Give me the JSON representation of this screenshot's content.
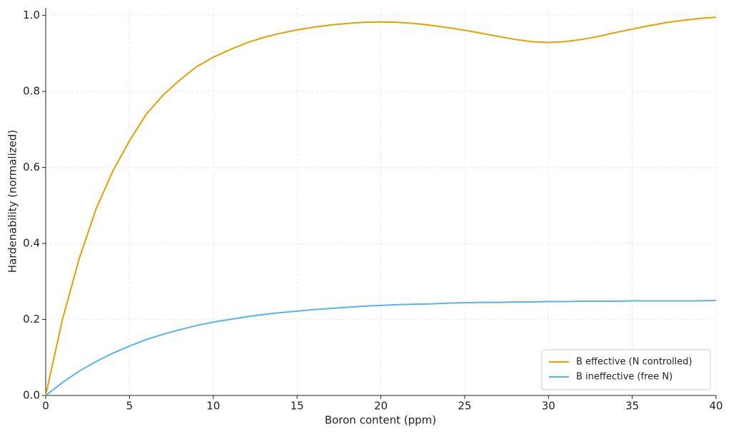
{
  "chart_data": {
    "type": "line",
    "x_label": "Boron content (ppm)",
    "y_label": "Hardenability (normalized)",
    "x": [
      0,
      1,
      2,
      3,
      4,
      5,
      6,
      7,
      8,
      9,
      10,
      11,
      12,
      13,
      14,
      15,
      16,
      17,
      18,
      19,
      20,
      21,
      22,
      23,
      24,
      25,
      26,
      27,
      28,
      29,
      30,
      31,
      32,
      33,
      34,
      35,
      36,
      37,
      38,
      39,
      40
    ],
    "series": [
      {
        "name": "B effective (N controlled)",
        "color": "#e69f00",
        "values": [
          0,
          0.2,
          0.36,
          0.49,
          0.59,
          0.67,
          0.74,
          0.79,
          0.83,
          0.865,
          0.89,
          0.91,
          0.928,
          0.942,
          0.953,
          0.962,
          0.969,
          0.975,
          0.979,
          0.982,
          0.983,
          0.982,
          0.979,
          0.974,
          0.968,
          0.961,
          0.953,
          0.945,
          0.937,
          0.931,
          0.929,
          0.931,
          0.937,
          0.945,
          0.955,
          0.964,
          0.973,
          0.981,
          0.987,
          0.992,
          0.995
        ]
      },
      {
        "name": "B ineffective (free N)",
        "color": "#56b4e9",
        "values": [
          0,
          0.034,
          0.064,
          0.089,
          0.111,
          0.13,
          0.147,
          0.161,
          0.173,
          0.184,
          0.193,
          0.2,
          0.207,
          0.213,
          0.218,
          0.222,
          0.226,
          0.229,
          0.232,
          0.235,
          0.237,
          0.239,
          0.24,
          0.241,
          0.243,
          0.244,
          0.245,
          0.245,
          0.246,
          0.246,
          0.247,
          0.247,
          0.248,
          0.248,
          0.248,
          0.249,
          0.249,
          0.249,
          0.249,
          0.249,
          0.25
        ]
      }
    ],
    "xlim": [
      0,
      40
    ],
    "xticks": [
      0,
      5,
      10,
      15,
      20,
      25,
      30,
      35,
      40
    ],
    "ylim": [
      0,
      1.02
    ],
    "yticks": [
      {
        "value": 0,
        "label": "0.0"
      },
      0.2,
      0.4,
      0.6,
      0.8,
      {
        "value": 1,
        "label": "1.0"
      }
    ],
    "grid": true,
    "legend": "lower right"
  }
}
